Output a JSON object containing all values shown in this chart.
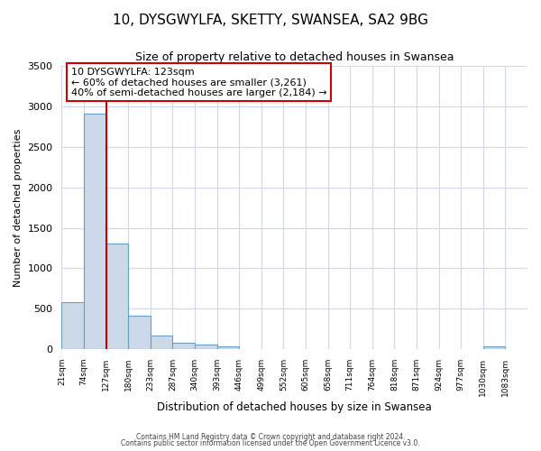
{
  "title": "10, DYSGWYLFA, SKETTY, SWANSEA, SA2 9BG",
  "subtitle": "Size of property relative to detached houses in Swansea",
  "xlabel": "Distribution of detached houses by size in Swansea",
  "ylabel": "Number of detached properties",
  "bar_labels": [
    "21sqm",
    "74sqm",
    "127sqm",
    "180sqm",
    "233sqm",
    "287sqm",
    "340sqm",
    "393sqm",
    "446sqm",
    "499sqm",
    "552sqm",
    "605sqm",
    "658sqm",
    "711sqm",
    "764sqm",
    "818sqm",
    "871sqm",
    "924sqm",
    "977sqm",
    "1030sqm",
    "1083sqm"
  ],
  "bar_values": [
    580,
    2910,
    1310,
    415,
    170,
    75,
    55,
    40,
    0,
    0,
    0,
    0,
    0,
    0,
    0,
    0,
    0,
    0,
    0,
    35,
    0
  ],
  "bar_color": "#ccd9e8",
  "bar_edge_color": "#6a9fc0",
  "red_line_color": "#cc0000",
  "red_line_bin": 2,
  "annotation_title": "10 DYSGWYLFA: 123sqm",
  "annotation_line1": "← 60% of detached houses are smaller (3,261)",
  "annotation_line2": "40% of semi-detached houses are larger (2,184) →",
  "annotation_box_color": "#ffffff",
  "annotation_border_color": "#cc0000",
  "ylim": [
    0,
    3500
  ],
  "bg_color": "#ffffff",
  "grid_color": "#d0d8e8",
  "footnote1": "Contains HM Land Registry data © Crown copyright and database right 2024.",
  "footnote2": "Contains public sector information licensed under the Open Government Licence v3.0."
}
